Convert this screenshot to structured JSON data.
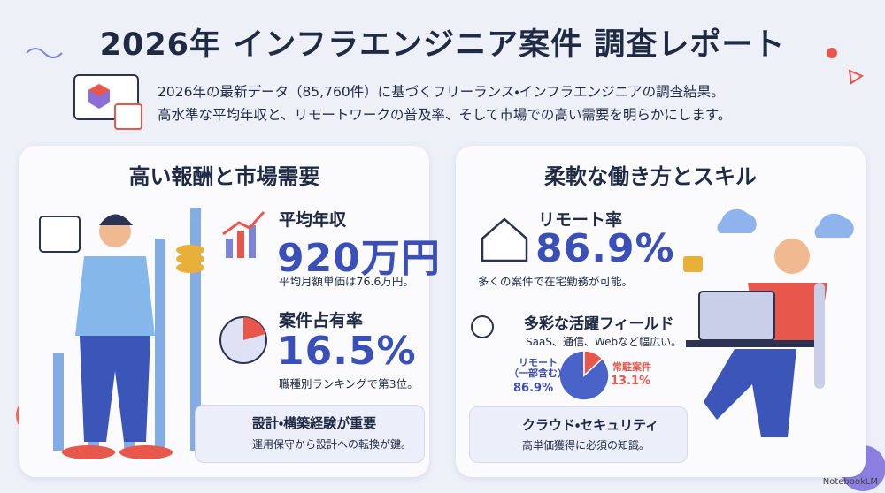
{
  "header": {
    "title": "2026年 インフラエンジニア案件 調査レポート",
    "intro": [
      "2026年の最新データ（85,760件）に基づくフリーランス・インフラエンジニアの調査結果。",
      "高水準な平均年収と、リモートワークの普及率、そして市場での高い需要を明らかにします。"
    ]
  },
  "left_panel": {
    "heading": "高い報酬と市場需要",
    "stats": [
      {
        "label": "平均年収",
        "value": "920万円",
        "note": "平均月額単価は76.6万円。"
      },
      {
        "label": "案件占有率",
        "value": "16.5%",
        "note": "職種別ランキングで第3位。"
      }
    ],
    "callout": {
      "title": "設計・構築経験が重要",
      "text": "運用保守から設計への転換が鍵。"
    }
  },
  "right_panel": {
    "heading": "柔軟な働き方とスキル",
    "stat": {
      "label": "リモート率",
      "value": "86.9%",
      "note": "多くの案件で在宅勤務が可能。"
    },
    "fields": {
      "title": "多彩な活躍フィールド",
      "text": "SaaS、通信、Webなど幅広い。"
    },
    "chart_data": {
      "type": "pie",
      "categories": [
        "リモート\n（一部含む）",
        "常駐案件"
      ],
      "values": [
        86.9,
        13.1
      ],
      "value_labels": [
        "86.9%",
        "13.1%"
      ],
      "colors": [
        "#4a63c9",
        "#e8574b"
      ]
    },
    "callout": {
      "title": "クラウド・セキュリティ",
      "text": "高単価獲得に必須の知識。"
    }
  },
  "footer": {
    "brand": "NotebookLM"
  }
}
